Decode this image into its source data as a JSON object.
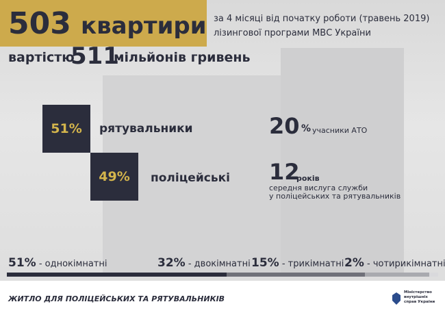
{
  "header": {
    "count": "503",
    "count_unit": "квартири",
    "cost_prefix": "вартістю",
    "cost": "511",
    "cost_unit": "мільйонів гривень",
    "note_line1": "за 4 місяці від початку роботи (травень 2019)",
    "note_line2": "лізингової програми МВС України"
  },
  "recipients": [
    {
      "value": 51,
      "label": "51%",
      "name": "рятувальники"
    },
    {
      "value": 49,
      "label": "49%",
      "name": "поліцейські"
    }
  ],
  "facts": [
    {
      "number": "20",
      "unit": "%",
      "text": "учасники АТО"
    },
    {
      "number": "12",
      "unit": "років",
      "text_line1": "середня вислуга служби",
      "text_line2": "у поліцейських та рятувальників"
    }
  ],
  "apartments": [
    {
      "value": 51,
      "label": "51%",
      "name": "- однокімнатні",
      "color": "#2b2d3c"
    },
    {
      "value": 32,
      "label": "32%",
      "name": "- двокімнатні",
      "color": "#707179"
    },
    {
      "value": 15,
      "label": "15%",
      "name": "- трикімнатні",
      "color": "#a9aaaf"
    },
    {
      "value": 2,
      "label": "2%",
      "name": "- чотирикімнатні",
      "color": "#d9d9dc"
    }
  ],
  "footer": {
    "title": "ЖИТЛО ДЛЯ ПОЛІЦЕЙСЬКИХ ТА РЯТУВАЛЬНИКІВ",
    "logo_text": "Міністерство внутрішніх справ України"
  }
}
